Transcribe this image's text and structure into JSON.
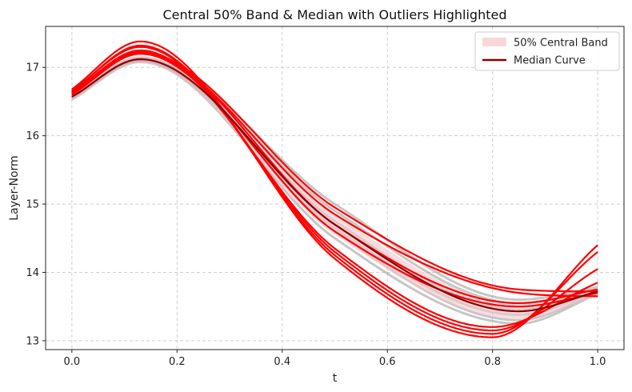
{
  "chart_data": {
    "type": "line",
    "title": "Central 50% Band & Median with Outliers Highlighted",
    "xlabel": "t",
    "ylabel": "Layer-Norm",
    "xlim": [
      -0.05,
      1.05
    ],
    "ylim": [
      12.87,
      17.6
    ],
    "xticks": [
      0.0,
      0.2,
      0.4,
      0.6,
      0.8,
      1.0
    ],
    "xtick_labels": [
      "0.0",
      "0.2",
      "0.4",
      "0.6",
      "0.8",
      "1.0"
    ],
    "yticks": [
      13,
      14,
      15,
      16,
      17
    ],
    "ytick_labels": [
      "13",
      "14",
      "15",
      "16",
      "17"
    ],
    "grid": true,
    "legend_position": "top-right",
    "legend": [
      {
        "label": "50% Central Band",
        "kind": "band",
        "color": "#f4c7cb"
      },
      {
        "label": "Median Curve",
        "kind": "line",
        "color": "#8b0000"
      }
    ],
    "colors": {
      "background_curves": "#808080",
      "outliers": "#ff0000",
      "median": "#8b0000",
      "band": "#f4c7cb"
    },
    "median": {
      "t": [
        0.0,
        0.13,
        0.5,
        0.85,
        1.0
      ],
      "y": [
        16.57,
        17.12,
        14.7,
        13.43,
        13.72
      ]
    },
    "central_band": {
      "t": [
        0.0,
        0.13,
        0.5,
        0.85,
        1.0
      ],
      "lower": [
        16.52,
        17.06,
        14.55,
        13.32,
        13.66
      ],
      "upper": [
        16.63,
        17.17,
        14.85,
        13.55,
        13.78
      ]
    },
    "background_curves": [
      {
        "t": [
          0.0,
          0.13,
          0.5,
          0.85,
          1.0
        ],
        "y": [
          16.55,
          17.1,
          14.6,
          13.3,
          13.7
        ]
      },
      {
        "t": [
          0.0,
          0.13,
          0.5,
          0.85,
          1.0
        ],
        "y": [
          16.58,
          17.12,
          14.9,
          13.55,
          13.75
        ]
      },
      {
        "t": [
          0.0,
          0.13,
          0.5,
          0.85,
          1.0
        ],
        "y": [
          16.6,
          17.13,
          14.75,
          13.45,
          13.7
        ]
      },
      {
        "t": [
          0.0,
          0.13,
          0.5,
          0.85,
          1.0
        ],
        "y": [
          16.53,
          17.08,
          14.5,
          13.25,
          13.68
        ]
      },
      {
        "t": [
          0.0,
          0.13,
          0.5,
          0.85,
          1.0
        ],
        "y": [
          16.62,
          17.14,
          15.0,
          13.6,
          13.78
        ]
      },
      {
        "t": [
          0.0,
          0.13,
          0.5,
          0.85,
          1.0
        ],
        "y": [
          16.56,
          17.1,
          14.65,
          13.38,
          13.72
        ]
      }
    ],
    "outlier_curves": [
      {
        "t": [
          0.0,
          0.13,
          0.5,
          0.8,
          1.0
        ],
        "y": [
          16.68,
          17.38,
          14.2,
          13.05,
          14.4
        ]
      },
      {
        "t": [
          0.0,
          0.13,
          0.5,
          0.8,
          1.0
        ],
        "y": [
          16.65,
          17.32,
          14.25,
          13.1,
          14.3
        ]
      },
      {
        "t": [
          0.0,
          0.13,
          0.5,
          0.8,
          1.0
        ],
        "y": [
          16.66,
          17.3,
          14.3,
          13.15,
          14.05
        ]
      },
      {
        "t": [
          0.0,
          0.13,
          0.5,
          0.8,
          1.0
        ],
        "y": [
          16.63,
          17.25,
          14.35,
          13.2,
          13.85
        ]
      },
      {
        "t": [
          0.0,
          0.13,
          0.5,
          0.85,
          1.0
        ],
        "y": [
          16.62,
          17.22,
          14.95,
          13.75,
          13.72
        ]
      },
      {
        "t": [
          0.0,
          0.13,
          0.5,
          0.85,
          1.0
        ],
        "y": [
          16.6,
          17.2,
          14.85,
          13.7,
          13.65
        ]
      },
      {
        "t": [
          0.0,
          0.13,
          0.5,
          0.85,
          1.0
        ],
        "y": [
          16.64,
          17.24,
          14.7,
          13.55,
          13.75
        ]
      },
      {
        "t": [
          0.0,
          0.13,
          0.5,
          0.85,
          1.0
        ],
        "y": [
          16.61,
          17.2,
          14.6,
          13.5,
          13.7
        ]
      }
    ]
  }
}
